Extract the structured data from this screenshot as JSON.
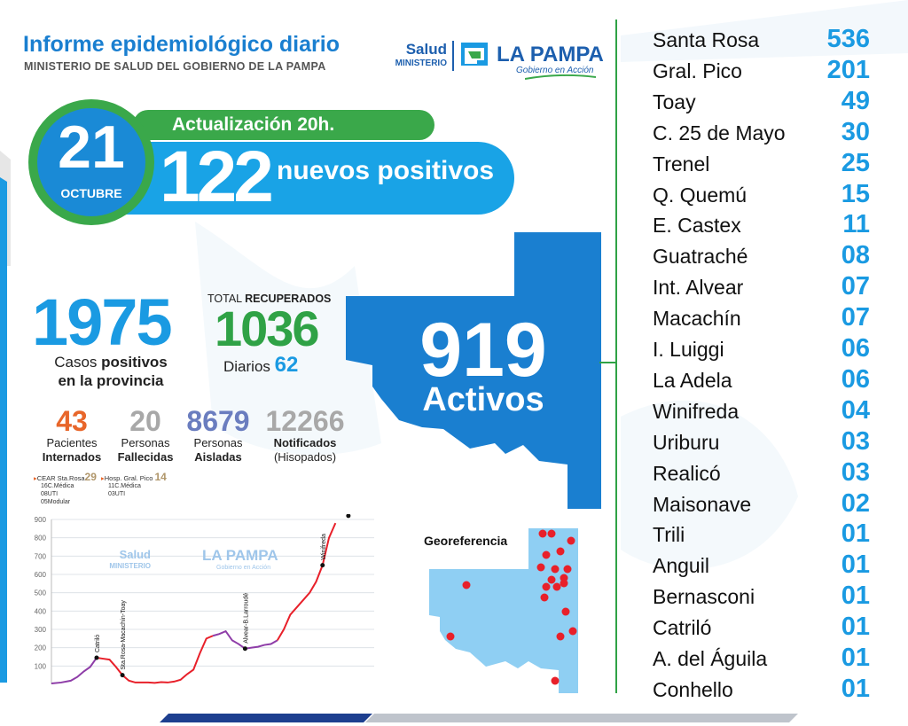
{
  "header": {
    "title": "Informe epidemiológico diario",
    "subtitle": "MINISTERIO DE SALUD DEL GOBIERNO DE LA PAMPA"
  },
  "logo": {
    "salud": "Salud",
    "ministerio": "MINISTERIO",
    "la_pampa": "LA PAMPA",
    "gobierno": "Gobierno en Acción"
  },
  "update": {
    "label": "Actualización 20h.",
    "day": "21",
    "month": "OCTUBRE",
    "new_count": "122",
    "new_label": "nuevos positivos"
  },
  "totals": {
    "cases": "1975",
    "cases_label_a": "Casos",
    "cases_label_b": "positivos",
    "cases_label_c": "en la provincia",
    "recovered_title_a": "TOTAL",
    "recovered_title_b": "RECUPERADOS",
    "recovered": "1036",
    "daily_label": "Diarios",
    "daily": "62",
    "active": "919",
    "active_label": "Activos"
  },
  "stats": [
    {
      "value": "43",
      "l1": "Pacientes",
      "l2": "Internados",
      "color": "#e8662a"
    },
    {
      "value": "20",
      "l1": "Personas",
      "l2": "Fallecidas",
      "color": "#a8a8a8"
    },
    {
      "value": "8679",
      "l1": "Personas",
      "l2": "Aisladas",
      "color": "#6a7dbf"
    },
    {
      "value": "12266",
      "l1": "Notificados",
      "l2": "(Hisopados)",
      "color": "#a8a8a8"
    }
  ],
  "hospital": {
    "cear_label": "CEAR Sta.Rosa",
    "cear_value": "29",
    "cear_a": "16C.Médica",
    "cear_b": "08UTI",
    "cear_c": "05Modular",
    "pico_label": "Hosp. Gral. Pico",
    "pico_value": "14",
    "pico_a": "11C.Médica",
    "pico_b": "03UTI"
  },
  "localities": [
    {
      "name": "Santa Rosa",
      "count": "536"
    },
    {
      "name": "Gral. Pico",
      "count": "201"
    },
    {
      "name": "Toay",
      "count": "49"
    },
    {
      "name": "C. 25 de Mayo",
      "count": "30"
    },
    {
      "name": "Trenel",
      "count": "25"
    },
    {
      "name": "Q. Quemú",
      "count": "15"
    },
    {
      "name": "E. Castex",
      "count": "11"
    },
    {
      "name": "Guatraché",
      "count": "08"
    },
    {
      "name": "Int. Alvear",
      "count": "07"
    },
    {
      "name": "Macachín",
      "count": "07"
    },
    {
      "name": "I. Luiggi",
      "count": "06"
    },
    {
      "name": "La Adela",
      "count": "06"
    },
    {
      "name": "Winifreda",
      "count": "04"
    },
    {
      "name": "Uriburu",
      "count": "03"
    },
    {
      "name": "Realicó",
      "count": "03"
    },
    {
      "name": "Maisonave",
      "count": "02"
    },
    {
      "name": "Trili",
      "count": "01"
    },
    {
      "name": "Anguil",
      "count": "01"
    },
    {
      "name": "Bernasconi",
      "count": "01"
    },
    {
      "name": "Catriló",
      "count": "01"
    },
    {
      "name": "A. del Águila",
      "count": "01"
    },
    {
      "name": "Conhello",
      "count": "01"
    }
  ],
  "georef": {
    "label": "Georeferencia"
  },
  "chart_data": {
    "type": "line",
    "yticks": [
      100,
      200,
      300,
      400,
      500,
      600,
      700,
      800,
      900
    ],
    "ylim": [
      0,
      900
    ],
    "x": [
      0,
      3,
      6,
      8,
      10,
      12,
      14,
      16,
      18,
      20,
      22,
      24,
      26,
      28,
      30,
      32,
      34,
      36,
      38,
      40,
      42,
      44,
      46,
      48,
      50,
      52,
      54,
      56,
      58,
      60,
      62,
      64,
      66,
      68,
      70,
      72,
      74,
      76,
      78,
      80,
      82,
      84,
      86,
      88,
      90,
      92,
      94,
      96,
      98,
      100
    ],
    "values": [
      5,
      10,
      20,
      40,
      70,
      95,
      145,
      140,
      135,
      95,
      50,
      20,
      10,
      10,
      10,
      8,
      12,
      10,
      15,
      25,
      55,
      80,
      170,
      250,
      265,
      275,
      290,
      240,
      220,
      195,
      200,
      205,
      215,
      220,
      240,
      300,
      380,
      420,
      460,
      500,
      560,
      650,
      800,
      880,
      920,
      920,
      920,
      920,
      920,
      920
    ],
    "n_points_shown": 44,
    "annotations": [
      {
        "x": 14,
        "text": "Catriló"
      },
      {
        "x": 22,
        "text": "Sta.Rosa-Macachín-Toay"
      },
      {
        "x": 60,
        "text": "Alvear-B.Larroudé"
      },
      {
        "x": 85,
        "text": "Winifreda"
      },
      {
        "x": 92,
        "text": "Sta. Rosa - Gral. Pico"
      }
    ],
    "watermark_salud": "Salud",
    "watermark_ministerio": "MINISTERIO",
    "watermark_lapampa": "LA PAMPA",
    "watermark_gobierno": "Gobierno en Acción"
  },
  "colors": {
    "blue": "#1a9ae2",
    "darkblue": "#1a7fd0",
    "green": "#2fa246",
    "map_blue": "#1a7fd0",
    "map_light": "#8fcff3",
    "dot_red": "#e8202a"
  }
}
